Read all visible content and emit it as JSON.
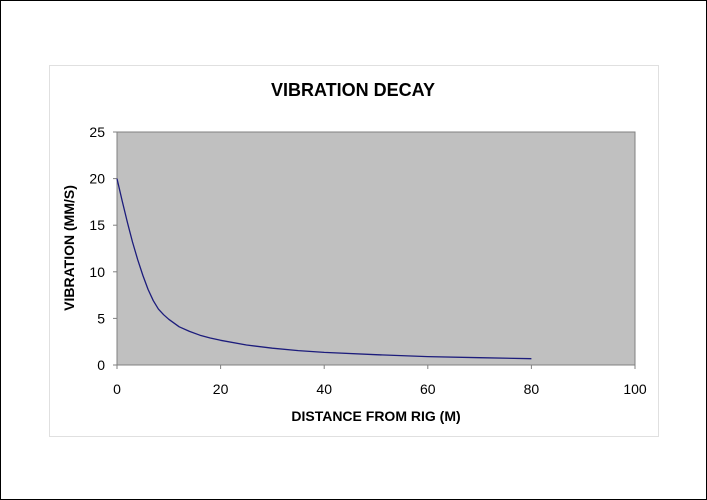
{
  "chart_data": {
    "type": "line",
    "title": "VIBRATION DECAY",
    "xlabel": "DISTANCE FROM RIG (M)",
    "ylabel": "VIBRATION (MM/S)",
    "xlim": [
      0,
      100
    ],
    "ylim": [
      0,
      25
    ],
    "xticks": [
      "0",
      "20",
      "40",
      "60",
      "80",
      "100"
    ],
    "yticks": [
      "0",
      "5",
      "10",
      "15",
      "20",
      "25"
    ],
    "grid": false,
    "legend": "none",
    "plot_background": "#c0c0c0",
    "series": [
      {
        "color": "#1c1c7c",
        "x": [
          0,
          1,
          2,
          3,
          4,
          5,
          6,
          7,
          8,
          9,
          10,
          12,
          14,
          16,
          18,
          20,
          25,
          30,
          35,
          40,
          50,
          60,
          70,
          80
        ],
        "y": [
          20,
          17.6,
          15.3,
          13.2,
          11.3,
          9.6,
          8.1,
          6.9,
          6.0,
          5.4,
          4.9,
          4.1,
          3.6,
          3.2,
          2.9,
          2.65,
          2.15,
          1.8,
          1.55,
          1.35,
          1.1,
          0.9,
          0.78,
          0.68
        ]
      }
    ]
  }
}
